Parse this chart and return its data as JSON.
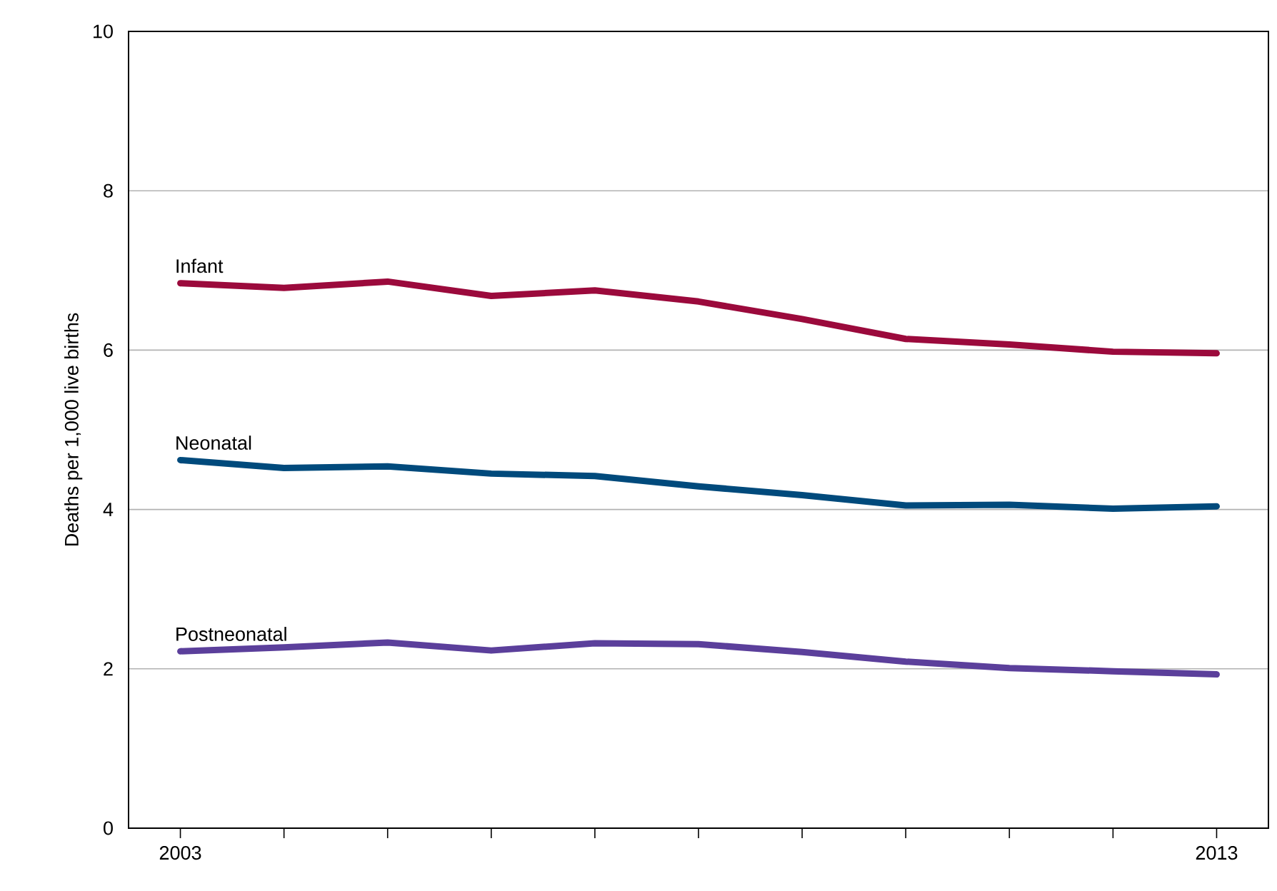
{
  "chart_data": {
    "type": "line",
    "ylabel": "Deaths per 1,000 live births",
    "x": [
      2003,
      2004,
      2005,
      2006,
      2007,
      2008,
      2009,
      2010,
      2011,
      2012,
      2013
    ],
    "series": [
      {
        "name": "Infant",
        "color": "#9b0a3c",
        "values": [
          6.84,
          6.78,
          6.86,
          6.68,
          6.75,
          6.61,
          6.39,
          6.14,
          6.07,
          5.98,
          5.96
        ]
      },
      {
        "name": "Neonatal",
        "color": "#004a7c",
        "values": [
          4.62,
          4.52,
          4.54,
          4.45,
          4.42,
          4.29,
          4.18,
          4.05,
          4.06,
          4.01,
          4.04
        ]
      },
      {
        "name": "Postneonatal",
        "color": "#5b3f9b",
        "values": [
          2.22,
          2.27,
          2.33,
          2.23,
          2.32,
          2.31,
          2.21,
          2.09,
          2.01,
          1.97,
          1.93
        ]
      }
    ],
    "xlim": [
      2002.5,
      2013.5
    ],
    "xticks": [
      2003,
      {
        "value": 2004,
        "label": null
      },
      {
        "value": 2005,
        "label": null
      },
      {
        "value": 2006,
        "label": null
      },
      {
        "value": 2007,
        "label": null
      },
      {
        "value": 2008,
        "label": null
      },
      {
        "value": 2009,
        "label": null
      },
      {
        "value": 2010,
        "label": null
      },
      {
        "value": 2011,
        "label": null
      },
      {
        "value": 2012,
        "label": null
      },
      2013
    ],
    "ylim": [
      0,
      10
    ],
    "yticks": [
      0,
      2,
      4,
      6,
      8,
      10
    ],
    "grid": "y",
    "legend": false,
    "marker": "none",
    "line_style": "solid"
  }
}
